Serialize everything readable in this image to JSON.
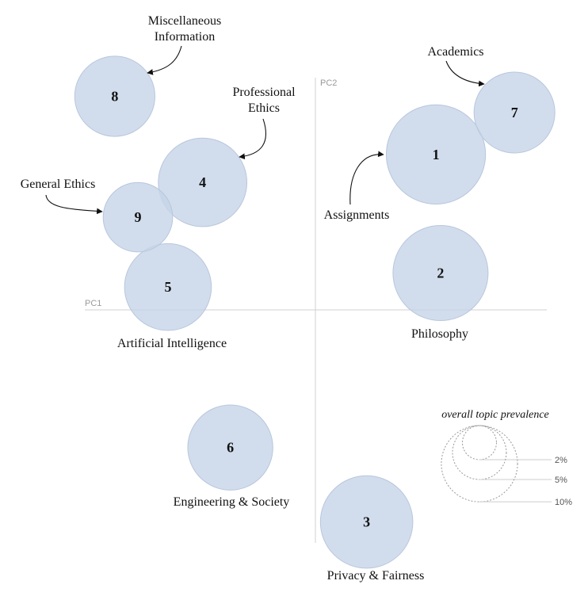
{
  "chart_data": {
    "type": "scatter",
    "title": "",
    "xlabel": "PC1",
    "ylabel": "PC2",
    "xlim": [
      -1.0,
      1.0
    ],
    "ylim": [
      -1.0,
      1.0
    ],
    "grid": false,
    "topics": [
      {
        "id": "1",
        "label": "Assignments",
        "x": 0.52,
        "y": 0.67,
        "prevalence": 9.8
      },
      {
        "id": "2",
        "label": "Philosophy",
        "x": 0.54,
        "y": 0.16,
        "prevalence": 9.0
      },
      {
        "id": "3",
        "label": "Privacy & Fairness",
        "x": 0.22,
        "y": -0.91,
        "prevalence": 8.5
      },
      {
        "id": "4",
        "label": "Professional Ethics",
        "x": -0.49,
        "y": 0.55,
        "prevalence": 7.8
      },
      {
        "id": "5",
        "label": "Artificial Intelligence",
        "x": -0.64,
        "y": 0.1,
        "prevalence": 7.5
      },
      {
        "id": "6",
        "label": "Engineering & Society",
        "x": -0.37,
        "y": -0.59,
        "prevalence": 7.2
      },
      {
        "id": "7",
        "label": "Academics",
        "x": 0.86,
        "y": 0.85,
        "prevalence": 6.5
      },
      {
        "id": "8",
        "label": "Miscellaneous Information",
        "x": -0.87,
        "y": 0.92,
        "prevalence": 6.4
      },
      {
        "id": "9",
        "label": "General Ethics",
        "x": -0.77,
        "y": 0.4,
        "prevalence": 4.8
      }
    ],
    "legend": {
      "title": "overall topic prevalence",
      "placement": "bottom-right",
      "entries": [
        {
          "label": "2%",
          "value": 2
        },
        {
          "label": "5%",
          "value": 5
        },
        {
          "label": "10%",
          "value": 10
        }
      ]
    },
    "colors": {
      "bubble": "#c5d4e8",
      "bubble_stroke": "#b8c7dc",
      "axis": "#d0d0d0"
    }
  }
}
